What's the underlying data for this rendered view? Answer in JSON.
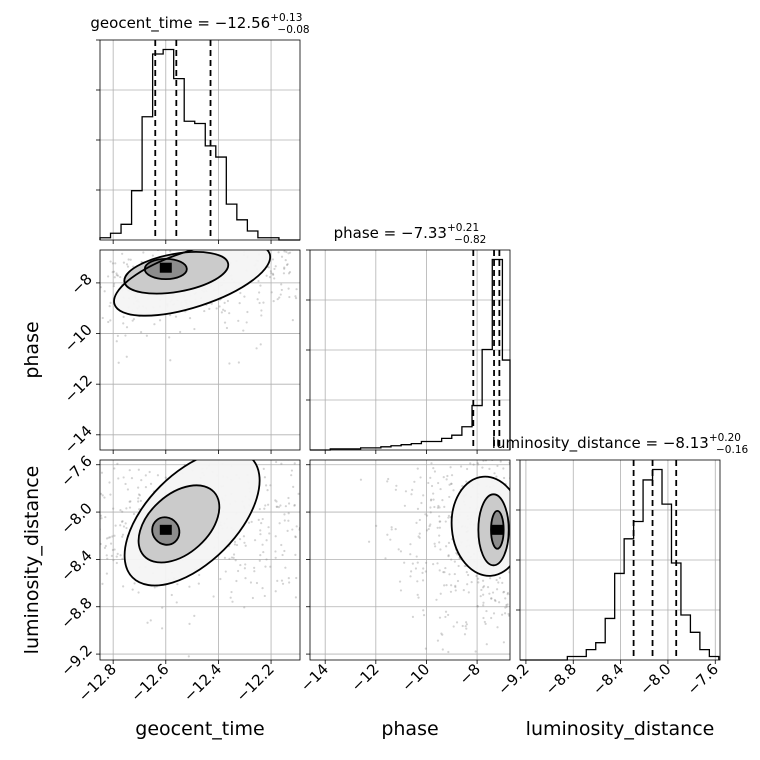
{
  "chart_data": {
    "type": "corner",
    "parameters": [
      "geocent_time",
      "phase",
      "luminosity_distance"
    ],
    "titles": [
      {
        "name": "geocent_time",
        "median": "−12.56",
        "plus": "+0.13",
        "minus": "−0.08"
      },
      {
        "name": "phase",
        "median": "−7.33",
        "plus": "+0.21",
        "minus": "−0.82"
      },
      {
        "name": "luminosity_distance",
        "median": "−8.13",
        "plus": "+0.20",
        "minus": "−0.16"
      }
    ],
    "ranges": {
      "geocent_time": [
        -12.85,
        -12.09
      ],
      "phase": [
        -14.6,
        -6.7
      ],
      "luminosity_distance": [
        -9.25,
        -7.56
      ]
    },
    "ticks": {
      "geocent_time": {
        "values": [
          -12.8,
          -12.6,
          -12.4,
          -12.2
        ],
        "labels": [
          "−12.8",
          "−12.6",
          "−12.4",
          "−12.2"
        ]
      },
      "phase": {
        "values": [
          -14,
          -12,
          -10,
          -8
        ],
        "labels": [
          "−14",
          "−12",
          "−10",
          "−8"
        ]
      },
      "luminosity_distance": {
        "values": [
          -9.2,
          -8.8,
          -8.4,
          -8.0,
          -7.6
        ],
        "labels": [
          "−9.2",
          "−8.8",
          "−8.4",
          "−8.0",
          "−7.6"
        ]
      }
    },
    "quantiles": {
      "geocent_time": [
        -12.64,
        -12.56,
        -12.43
      ],
      "phase": [
        -8.15,
        -7.33,
        -7.12
      ],
      "luminosity_distance": [
        -8.29,
        -8.13,
        -7.93
      ]
    },
    "histograms": {
      "geocent_time": {
        "edges": [
          -12.85,
          -12.81,
          -12.77,
          -12.73,
          -12.69,
          -12.65,
          -12.61,
          -12.57,
          -12.53,
          -12.49,
          -12.45,
          -12.41,
          -12.37,
          -12.33,
          -12.29,
          -12.25,
          -12.21,
          -12.17,
          -12.13,
          -12.09
        ],
        "counts": [
          1,
          3,
          7,
          22,
          55,
          83,
          85,
          72,
          53,
          52,
          42,
          37,
          16,
          9,
          4,
          1,
          1,
          0,
          0
        ]
      },
      "phase": {
        "edges": [
          -14.6,
          -14.2,
          -13.8,
          -13.4,
          -13.0,
          -12.6,
          -12.2,
          -11.8,
          -11.4,
          -11.0,
          -10.6,
          -10.2,
          -9.8,
          -9.4,
          -9.0,
          -8.6,
          -8.2,
          -7.8,
          -7.4,
          -7.0,
          -6.7
        ],
        "counts": [
          0,
          0,
          1,
          1,
          1,
          2,
          2,
          3,
          4,
          5,
          6,
          8,
          8,
          11,
          14,
          22,
          42,
          95,
          180,
          85
        ]
      },
      "luminosity_distance": {
        "edges": [
          -9.25,
          -9.17,
          -9.09,
          -9.01,
          -8.93,
          -8.85,
          -8.77,
          -8.69,
          -8.61,
          -8.53,
          -8.45,
          -8.37,
          -8.29,
          -8.21,
          -8.13,
          -8.05,
          -7.97,
          -7.89,
          -7.81,
          -7.73,
          -7.65,
          -7.57
        ],
        "counts": [
          0,
          0,
          0,
          0,
          0,
          1,
          1,
          3,
          5,
          12,
          25,
          35,
          40,
          52,
          55,
          45,
          28,
          13,
          8,
          3,
          1
        ]
      }
    },
    "pairs": [
      {
        "x": "geocent_time",
        "y": "phase",
        "peak": [
          -12.6,
          -7.4
        ],
        "contours": [
          {
            "cx": -12.6,
            "cy": -7.45,
            "rx": 0.08,
            "ry": 0.4,
            "rot": 0
          },
          {
            "cx": -12.56,
            "cy": -7.6,
            "rx": 0.2,
            "ry": 0.75,
            "rot": -10
          },
          {
            "cx": -12.5,
            "cy": -7.85,
            "rx": 0.31,
            "ry": 1.1,
            "rot": -18
          }
        ]
      },
      {
        "x": "geocent_time",
        "y": "luminosity_distance",
        "peak": [
          -12.6,
          -8.15
        ],
        "contours": [
          {
            "cx": -12.6,
            "cy": -8.16,
            "rx": 0.05,
            "ry": 0.12,
            "rot": -40
          },
          {
            "cx": -12.55,
            "cy": -8.1,
            "rx": 0.18,
            "ry": 0.25,
            "rot": -42
          },
          {
            "cx": -12.5,
            "cy": -8.05,
            "rx": 0.32,
            "ry": 0.38,
            "rot": -45
          }
        ]
      },
      {
        "x": "phase",
        "y": "luminosity_distance",
        "peak": [
          -7.2,
          -8.15
        ],
        "contours": [
          {
            "cx": -7.2,
            "cy": -8.15,
            "rx": 0.25,
            "ry": 0.16,
            "rot": 0
          },
          {
            "cx": -7.35,
            "cy": -8.15,
            "rx": 0.6,
            "ry": 0.3,
            "rot": 0
          },
          {
            "cx": -7.6,
            "cy": -8.12,
            "rx": 1.4,
            "ry": 0.42,
            "rot": -5
          }
        ]
      }
    ],
    "grid": true,
    "colors": {
      "line": "#000000",
      "grid": "#b0b0b0",
      "points": "#808080"
    }
  }
}
